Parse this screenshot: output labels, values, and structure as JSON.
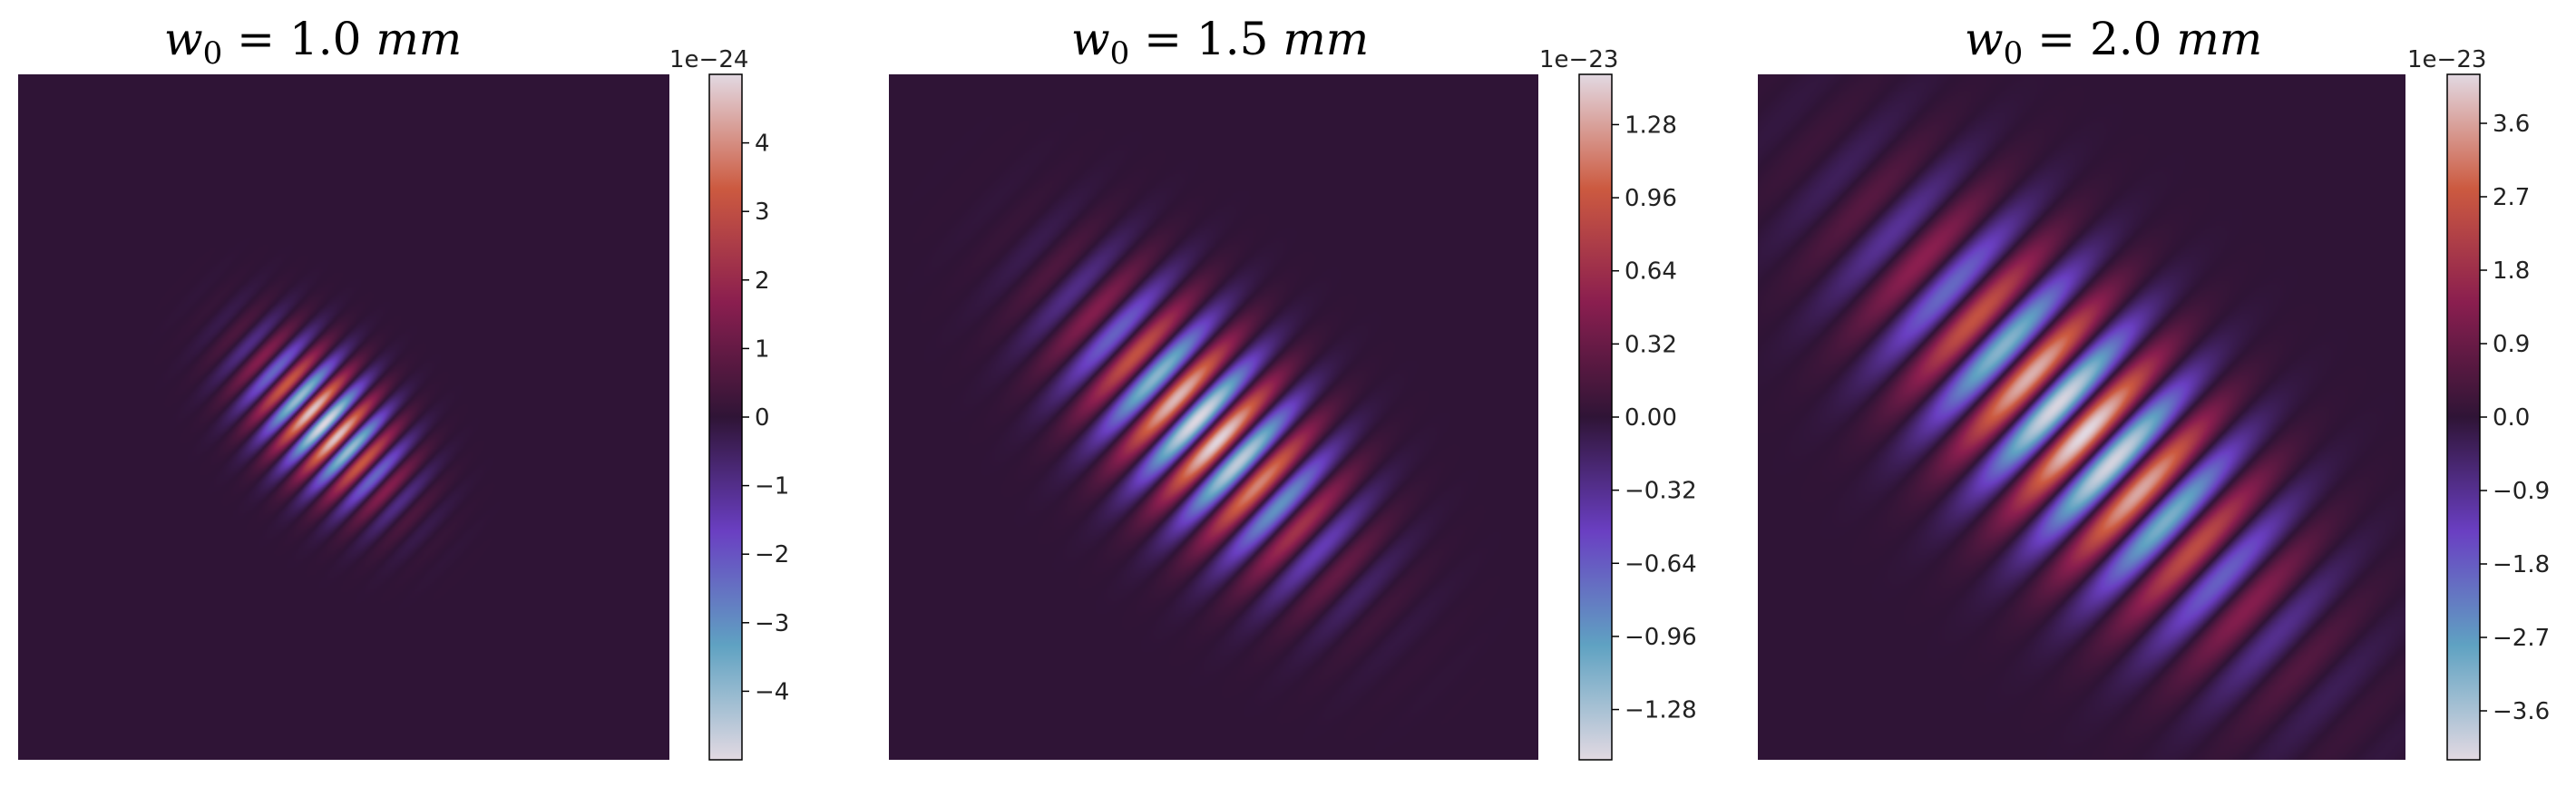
{
  "chart_data": [
    {
      "type": "heatmap",
      "title": "w0 = 1.0 mm",
      "title_parts": {
        "symbol": "w",
        "subscript": "0",
        "value": " = 1.0 ",
        "unit": "mm"
      },
      "colorbar": {
        "scale_label": "1e−24",
        "ticks": [
          4,
          3,
          2,
          1,
          0,
          -1,
          -2,
          -3,
          -4
        ],
        "tick_labels": [
          "4",
          "3",
          "2",
          "1",
          "0",
          "−1",
          "−2",
          "−3",
          "−4"
        ],
        "range": [
          -5,
          5
        ]
      },
      "field": {
        "orientation_deg": 45,
        "fringe_wavelength": 0.055,
        "phase": 0.0,
        "fringe_sign": -1,
        "envelope_sigma_long": 0.09,
        "envelope_sigma_trans": 0.055,
        "peak": 5.0,
        "center": [
          0.47,
          0.51
        ]
      }
    },
    {
      "type": "heatmap",
      "title": "w0 = 1.5 mm",
      "title_parts": {
        "symbol": "w",
        "subscript": "0",
        "value": " = 1.5 ",
        "unit": "mm"
      },
      "colorbar": {
        "scale_label": "1e−23",
        "ticks": [
          1.28,
          0.96,
          0.64,
          0.32,
          0.0,
          -0.32,
          -0.64,
          -0.96,
          -1.28
        ],
        "tick_labels": [
          "1.28",
          "0.96",
          "0.64",
          "0.32",
          "0.00",
          "−0.32",
          "−0.64",
          "−0.96",
          "−1.28"
        ],
        "range": [
          -1.5,
          1.5
        ]
      },
      "field": {
        "orientation_deg": 45,
        "fringe_wavelength": 0.09,
        "phase": 1.57,
        "fringe_sign": -1,
        "envelope_sigma_long": 0.16,
        "envelope_sigma_trans": 0.085,
        "peak": 1.5,
        "center": [
          0.49,
          0.52
        ]
      }
    },
    {
      "type": "heatmap",
      "title": "w0 = 2.0 mm",
      "title_parts": {
        "symbol": "w",
        "subscript": "0",
        "value": " = 2.0 ",
        "unit": "mm"
      },
      "colorbar": {
        "scale_label": "1e−23",
        "ticks": [
          3.6,
          2.7,
          1.8,
          0.9,
          0.0,
          -0.9,
          -1.8,
          -2.7,
          -3.6
        ],
        "tick_labels": [
          "3.6",
          "2.7",
          "1.8",
          "0.9",
          "0.0",
          "−0.9",
          "−1.8",
          "−2.7",
          "−3.6"
        ],
        "range": [
          -4.2,
          4.2
        ]
      },
      "field": {
        "orientation_deg": 45,
        "fringe_wavelength": 0.12,
        "phase": 2.8,
        "fringe_sign": -1,
        "envelope_sigma_long": 0.24,
        "envelope_sigma_trans": 0.11,
        "peak": 4.2,
        "center": [
          0.5,
          0.52
        ]
      }
    }
  ],
  "colormap": {
    "name": "twilight_shifted",
    "stops": [
      "#e2d9e2",
      "#5fa2c2",
      "#6a3fc2",
      "#2f1436",
      "#8a1e4f",
      "#cc5a40",
      "#e2d9e2"
    ]
  }
}
